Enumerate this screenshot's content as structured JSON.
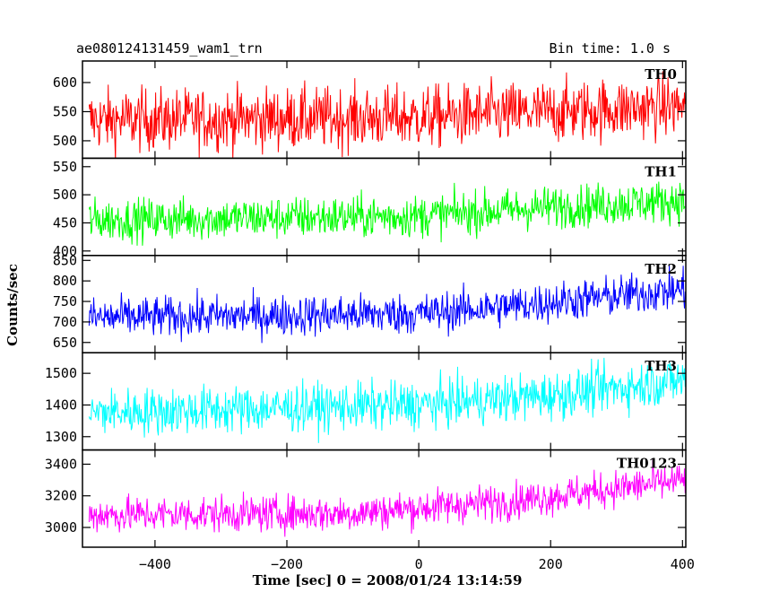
{
  "header": {
    "title": "ae080124131459_wam1_trn",
    "bin_time": "Bin time: 1.0 s"
  },
  "chart_data": {
    "type": "line",
    "title": "ae080124131459_wam1_trn",
    "subtitle": "Bin time: 1.0 s",
    "xlabel": "Time [sec] 0 = 2008/01/24 13:14:59",
    "ylabel": "Counts/sec",
    "xlim": [
      -510,
      405
    ],
    "xticks": [
      -400,
      -200,
      0,
      200,
      400
    ],
    "grid": false,
    "series": [
      {
        "name": "TH0",
        "color": "#ff0000",
        "ylim": [
          470,
          637
        ],
        "yticks": [
          500,
          550,
          600
        ],
        "trend": [
          [
            -510,
            535
          ],
          [
            0,
            540
          ],
          [
            250,
            552
          ],
          [
            405,
            560
          ]
        ],
        "noise": 27
      },
      {
        "name": "TH1",
        "color": "#00ff00",
        "ylim": [
          392,
          565
        ],
        "yticks": [
          400,
          450,
          500,
          550
        ],
        "trend": [
          [
            -510,
            455
          ],
          [
            0,
            462
          ],
          [
            200,
            478
          ],
          [
            405,
            490
          ]
        ],
        "noise": 19
      },
      {
        "name": "TH2",
        "color": "#0000ff",
        "ylim": [
          625,
          862
        ],
        "yticks": [
          650,
          700,
          750,
          800,
          850
        ],
        "trend": [
          [
            -510,
            710
          ],
          [
            0,
            720
          ],
          [
            150,
            740
          ],
          [
            405,
            780
          ]
        ],
        "noise": 25
      },
      {
        "name": "TH3",
        "color": "#00ffff",
        "ylim": [
          1258,
          1565
        ],
        "yticks": [
          1300,
          1400,
          1500
        ],
        "trend": [
          [
            -510,
            1375
          ],
          [
            0,
            1400
          ],
          [
            200,
            1430
          ],
          [
            405,
            1480
          ]
        ],
        "noise": 38
      },
      {
        "name": "TH0123",
        "color": "#ff00ff",
        "ylim": [
          2875,
          3490
        ],
        "yticks": [
          3000,
          3200,
          3400
        ],
        "trend": [
          [
            -510,
            3080
          ],
          [
            -100,
            3090
          ],
          [
            150,
            3170
          ],
          [
            405,
            3300
          ]
        ],
        "noise": 58
      }
    ]
  }
}
